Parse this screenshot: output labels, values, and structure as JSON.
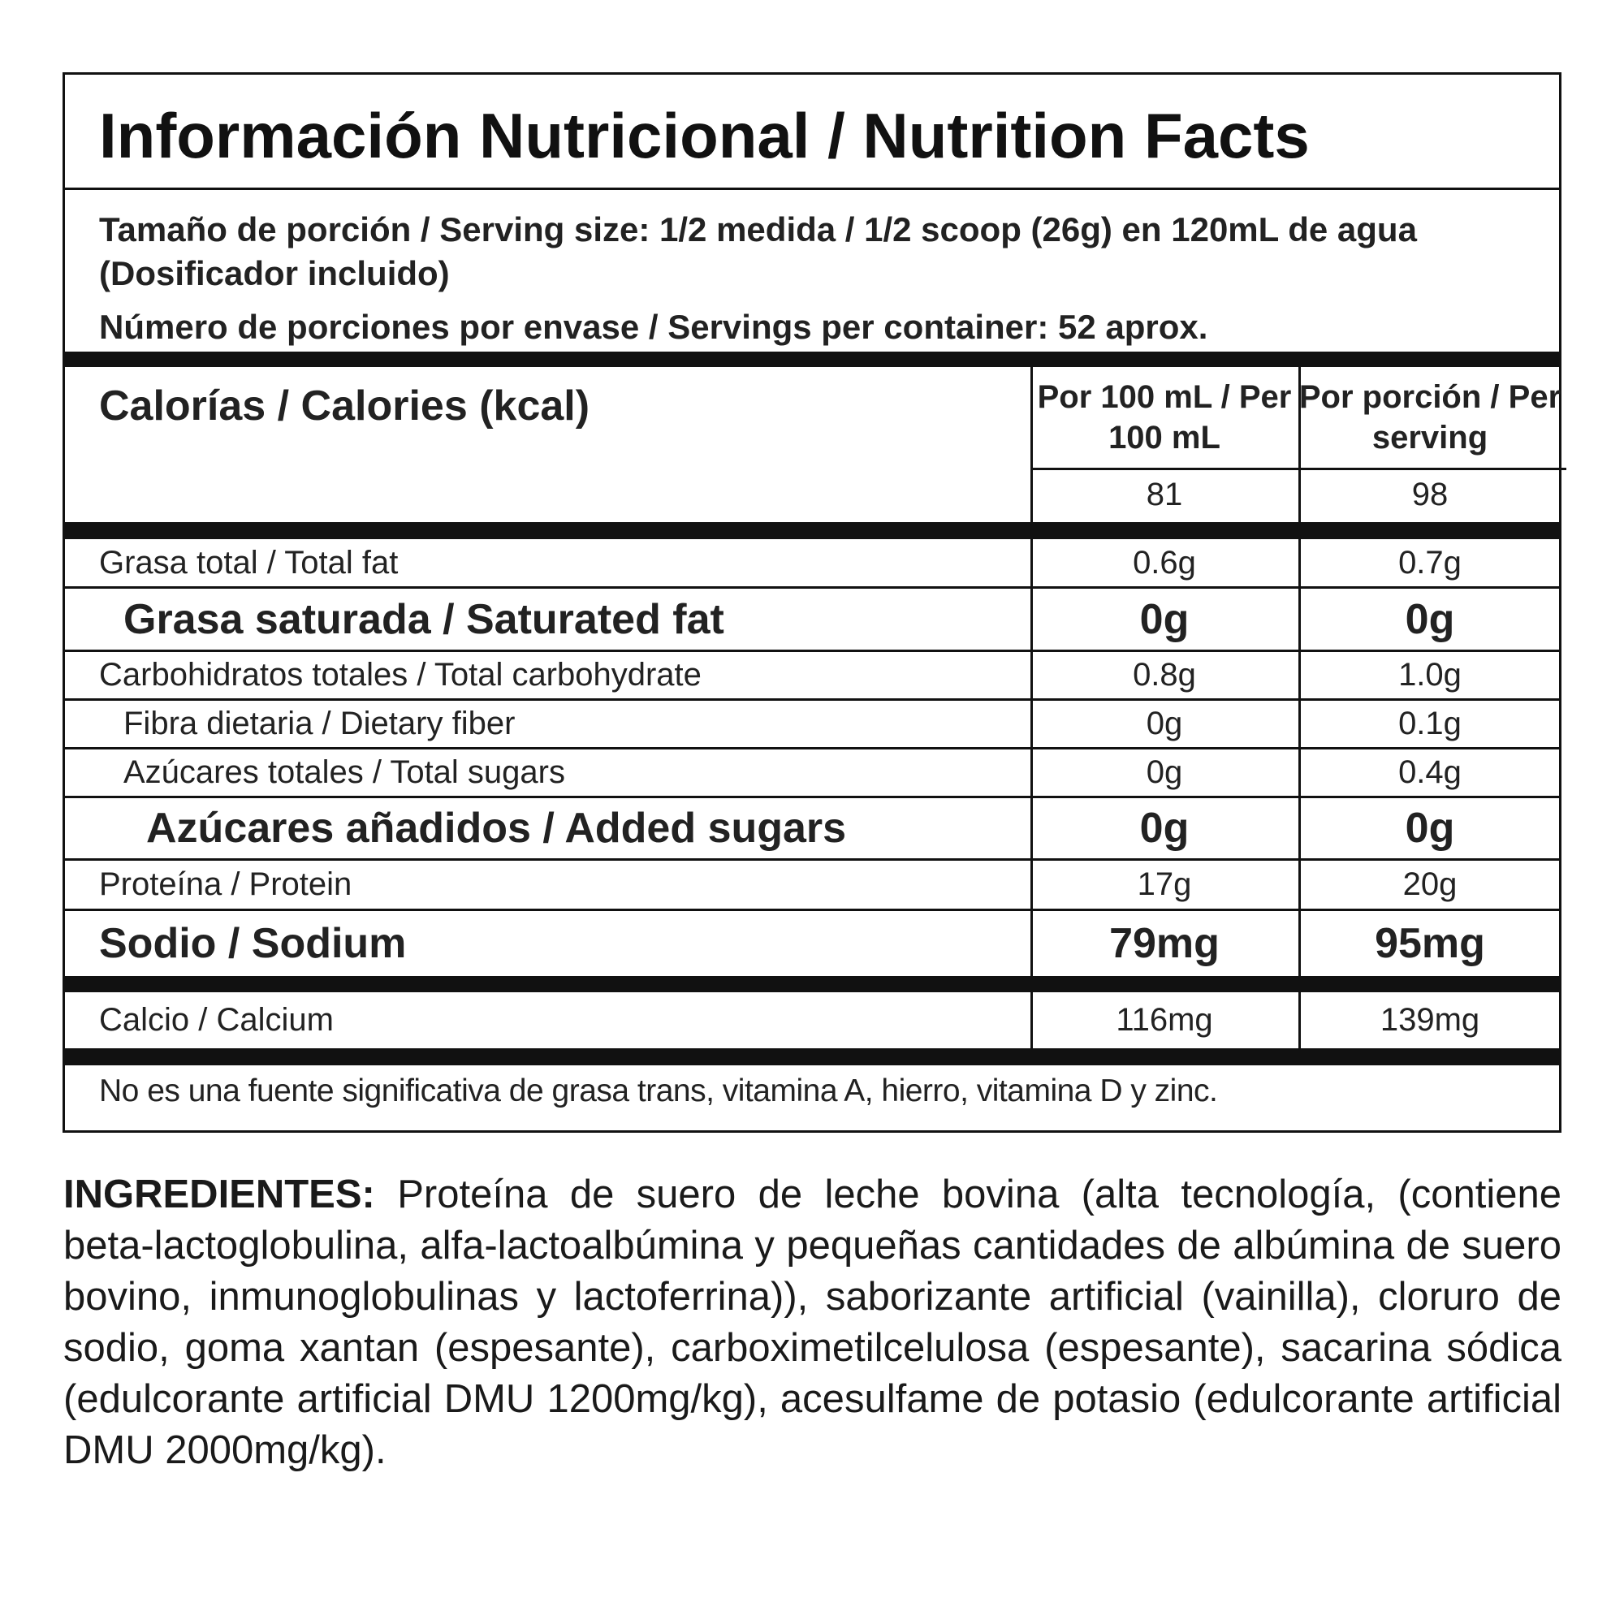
{
  "title": "Información Nutricional / Nutrition Facts",
  "serving": {
    "line1": "Tamaño de porción / Serving size: 1/2 medida / 1/2 scoop (26g) en 120mL de agua (Dosificador incluido)",
    "line2": "Número de porciones por envase / Servings per container: 52 aprox."
  },
  "calories": {
    "label": "Calorías / Calories (kcal)",
    "col1_header": "Por 100 mL / Per 100 mL",
    "col2_header": "Por porción / Per serving",
    "per_100ml": "81",
    "per_serving": "98"
  },
  "nutrients": [
    {
      "name": "Grasa total / Total fat",
      "per_100ml": "0.6g",
      "per_serving": "0.7g",
      "bold": false,
      "indent": 0
    },
    {
      "name": "Grasa saturada / Saturated fat",
      "per_100ml": "0g",
      "per_serving": "0g",
      "bold": true,
      "indent": 1
    },
    {
      "name": "Carbohidratos totales / Total carbohydrate",
      "per_100ml": "0.8g",
      "per_serving": "1.0g",
      "bold": false,
      "indent": 0
    },
    {
      "name": "Fibra dietaria / Dietary fiber",
      "per_100ml": "0g",
      "per_serving": "0.1g",
      "bold": false,
      "indent": 1
    },
    {
      "name": "Azúcares totales / Total sugars",
      "per_100ml": "0g",
      "per_serving": "0.4g",
      "bold": false,
      "indent": 1
    },
    {
      "name": "Azúcares añadidos / Added sugars",
      "per_100ml": "0g",
      "per_serving": "0g",
      "bold": true,
      "indent": 2
    },
    {
      "name": "Proteína / Protein",
      "per_100ml": "17g",
      "per_serving": "20g",
      "bold": false,
      "indent": 0
    },
    {
      "name": "Sodio / Sodium",
      "per_100ml": "79mg",
      "per_serving": "95mg",
      "bold": true,
      "indent": 0
    }
  ],
  "minerals": [
    {
      "name": "Calcio / Calcium",
      "per_100ml": "116mg",
      "per_serving": "139mg"
    }
  ],
  "note": "No es una fuente significativa de grasa trans, vitamina  A, hierro, vitamina D y zinc.",
  "ingredients": {
    "label": "INGREDIENTES:",
    "text": "Proteína de suero de leche bovina (alta tecnología, (contiene beta-lactoglobulina, alfa-lactoalbúmina y pequeñas cantidades de albúmina de suero bovino, inmunoglobulinas y lactoferrina)), saborizante artificial (vainilla), cloruro de sodio, goma xantan (espesante), carboximetilcelulosa (espesante), sacarina sódica (edulcorante artificial DMU 1200mg/kg), acesulfame de potasio (edulcorante artificial DMU 2000mg/kg)."
  }
}
